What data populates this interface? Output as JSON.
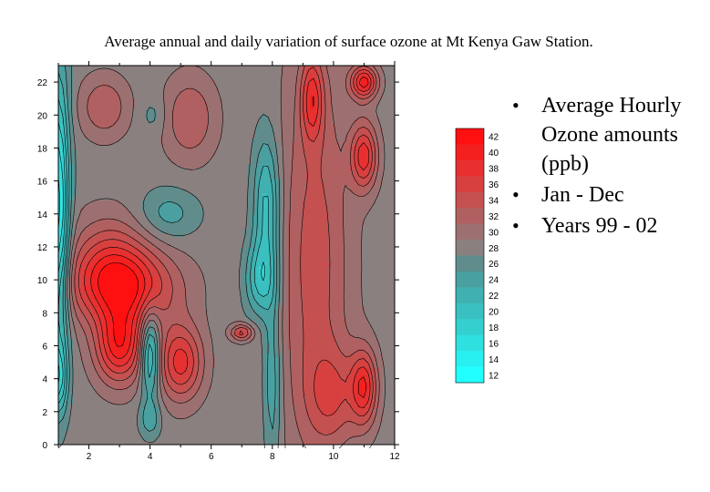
{
  "title": "Average annual and daily variation of surface ozone at Mt Kenya Gaw Station.",
  "bullets": [
    "Average Hourly Ozone amounts (ppb)",
    "Jan - Dec",
    "Years 99 - 02"
  ],
  "chart_data": {
    "type": "heatmap",
    "title": "Average annual and daily variation of surface ozone at Mt Kenya Gaw Station.",
    "xlabel": "",
    "ylabel": "",
    "xlim": [
      1,
      12
    ],
    "ylim": [
      0,
      23
    ],
    "xticks": [
      2,
      4,
      6,
      8,
      10,
      12
    ],
    "yticks": [
      0,
      2,
      4,
      6,
      8,
      10,
      12,
      14,
      16,
      18,
      20,
      22
    ],
    "colorbar": {
      "levels": [
        12,
        14,
        16,
        18,
        20,
        22,
        24,
        26,
        28,
        30,
        32,
        34,
        36,
        38,
        40,
        42
      ],
      "colors": [
        "#22ffff",
        "#28f0f0",
        "#2ee0e0",
        "#34d0d0",
        "#3ac0c0",
        "#40b0b0",
        "#4aa0a0",
        "#608c8c",
        "#8a8080",
        "#9c7070",
        "#b06060",
        "#c45050",
        "#d84040",
        "#e83030",
        "#f42020",
        "#ff1010"
      ],
      "tick_labels": [
        "12",
        "14",
        "16",
        "18",
        "20",
        "22",
        "24",
        "26",
        "28",
        "30",
        "32",
        "34",
        "36",
        "38",
        "40",
        "42"
      ]
    },
    "background_level": 28,
    "features": [
      {
        "kind": "high",
        "x": 3.0,
        "y": 6.0,
        "sx": 0.55,
        "sy": 1.6,
        "value": 40
      },
      {
        "kind": "high",
        "x": 3.2,
        "y": 9.5,
        "sx": 1.2,
        "sy": 1.6,
        "value": 38
      },
      {
        "kind": "high",
        "x": 2.7,
        "y": 11.0,
        "sx": 0.9,
        "sy": 2.0,
        "value": 35
      },
      {
        "kind": "high",
        "x": 5.0,
        "y": 5.0,
        "sx": 0.5,
        "sy": 1.6,
        "value": 38
      },
      {
        "kind": "high",
        "x": 2.5,
        "y": 20.5,
        "sx": 0.55,
        "sy": 1.3,
        "value": 33
      },
      {
        "kind": "high",
        "x": 5.3,
        "y": 19.8,
        "sx": 0.6,
        "sy": 1.8,
        "value": 33
      },
      {
        "kind": "high",
        "x": 7.0,
        "y": 6.8,
        "sx": 0.25,
        "sy": 0.35,
        "value": 36
      },
      {
        "kind": "high",
        "x": 9.4,
        "y": 11.0,
        "sx": 0.8,
        "sy": 9.0,
        "value": 34
      },
      {
        "kind": "high",
        "x": 11.0,
        "y": 22.0,
        "sx": 0.3,
        "sy": 0.7,
        "value": 40
      },
      {
        "kind": "high",
        "x": 11.0,
        "y": 17.5,
        "sx": 0.3,
        "sy": 1.4,
        "value": 38
      },
      {
        "kind": "high",
        "x": 11.0,
        "y": 3.5,
        "sx": 0.3,
        "sy": 1.6,
        "value": 38
      },
      {
        "kind": "high",
        "x": 9.3,
        "y": 21.0,
        "sx": 0.25,
        "sy": 1.8,
        "value": 36
      },
      {
        "kind": "high",
        "x": 10.0,
        "y": 3.0,
        "sx": 0.6,
        "sy": 2.0,
        "value": 33
      },
      {
        "kind": "low",
        "x": 1.0,
        "y": 14.0,
        "sx": 0.25,
        "sy": 6.0,
        "value": 14
      },
      {
        "kind": "low",
        "x": 1.0,
        "y": 4.0,
        "sx": 0.2,
        "sy": 1.5,
        "value": 20
      },
      {
        "kind": "low",
        "x": 4.0,
        "y": 5.5,
        "sx": 0.22,
        "sy": 1.8,
        "value": 18
      },
      {
        "kind": "low",
        "x": 4.0,
        "y": 1.5,
        "sx": 0.25,
        "sy": 0.8,
        "value": 24
      },
      {
        "kind": "low",
        "x": 4.6,
        "y": 14.0,
        "sx": 0.7,
        "sy": 1.1,
        "value": 24
      },
      {
        "kind": "low",
        "x": 7.8,
        "y": 14.5,
        "sx": 0.3,
        "sy": 3.0,
        "value": 20
      },
      {
        "kind": "low",
        "x": 7.6,
        "y": 10.0,
        "sx": 0.35,
        "sy": 1.6,
        "value": 21
      },
      {
        "kind": "low",
        "x": 8.0,
        "y": 4.0,
        "sx": 0.2,
        "sy": 4.0,
        "value": 23
      },
      {
        "kind": "low",
        "x": 4.1,
        "y": 20.0,
        "sx": 0.3,
        "sy": 0.8,
        "value": 26
      }
    ]
  }
}
